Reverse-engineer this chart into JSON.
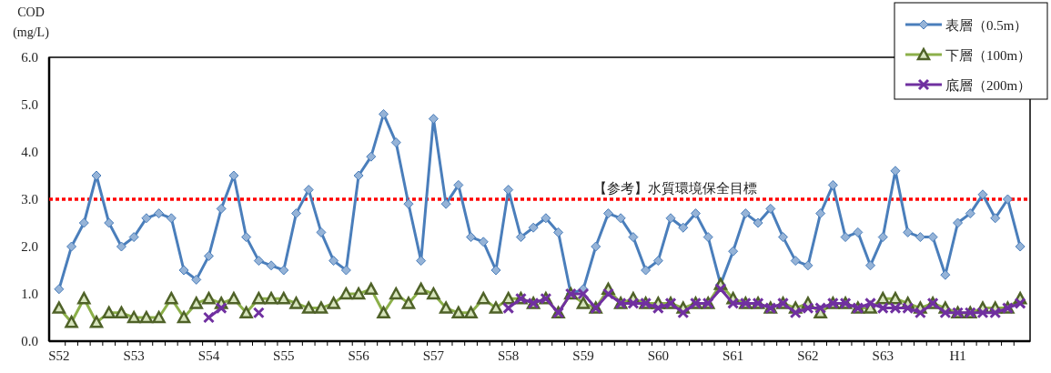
{
  "chart_data": {
    "type": "line",
    "ylabel": "COD\n(mg/L)",
    "categories": [
      "S52",
      null,
      null,
      null,
      null,
      null,
      "S53",
      null,
      null,
      null,
      null,
      null,
      "S54",
      null,
      null,
      null,
      null,
      null,
      "S55",
      null,
      null,
      null,
      null,
      null,
      "S56",
      null,
      null,
      null,
      null,
      null,
      "S57",
      null,
      null,
      null,
      null,
      null,
      "S58",
      null,
      null,
      null,
      null,
      null,
      "S59",
      null,
      null,
      null,
      null,
      null,
      "S60",
      null,
      null,
      null,
      null,
      null,
      "S61",
      null,
      null,
      null,
      null,
      null,
      "S62",
      null,
      null,
      null,
      null,
      null,
      "S63",
      null,
      null,
      null,
      null,
      null,
      "H1",
      null,
      null,
      null,
      null,
      null
    ],
    "ylim": [
      0,
      6
    ],
    "yticks": [
      {
        "value": 0,
        "label": "0.0"
      },
      {
        "value": 1,
        "label": "1.0"
      },
      {
        "value": 2,
        "label": "2.0"
      },
      {
        "value": 3,
        "label": "3.0"
      },
      {
        "value": 4,
        "label": "4.0"
      },
      {
        "value": 5,
        "label": "5.0"
      },
      {
        "value": 6,
        "label": "6.0"
      }
    ],
    "legend": "top right",
    "series": [
      {
        "name": "表層（0.5m）",
        "color": "#4a7ebb",
        "marker": "diamond",
        "values": [
          1.1,
          2.0,
          2.5,
          3.5,
          2.5,
          2.0,
          2.2,
          2.6,
          2.7,
          2.6,
          1.5,
          1.3,
          1.8,
          2.8,
          3.5,
          2.2,
          1.7,
          1.6,
          1.5,
          2.7,
          3.2,
          2.3,
          1.7,
          1.5,
          3.5,
          3.9,
          4.8,
          4.2,
          2.9,
          1.7,
          4.7,
          2.9,
          3.3,
          2.2,
          2.1,
          1.5,
          3.2,
          2.2,
          2.4,
          2.6,
          2.3,
          1.0,
          1.1,
          2.0,
          2.7,
          2.6,
          2.2,
          1.5,
          1.7,
          2.6,
          2.4,
          2.7,
          2.2,
          1.2,
          1.9,
          2.7,
          2.5,
          2.8,
          2.2,
          1.7,
          1.6,
          2.7,
          3.3,
          2.2,
          2.3,
          1.6,
          2.2,
          3.6,
          2.3,
          2.2,
          2.2,
          1.4,
          2.5,
          2.7,
          3.1,
          2.6,
          3.0,
          2.0
        ]
      },
      {
        "name": "下層（100m）",
        "color": "#8cb04a",
        "marker": "triangle",
        "values": [
          0.7,
          0.4,
          0.9,
          0.4,
          0.6,
          0.6,
          0.5,
          0.5,
          0.5,
          0.9,
          0.5,
          0.8,
          0.9,
          0.8,
          0.9,
          0.6,
          0.9,
          0.9,
          0.9,
          0.8,
          0.7,
          0.7,
          0.8,
          1.0,
          1.0,
          1.1,
          0.6,
          1.0,
          0.8,
          1.1,
          1.0,
          0.7,
          0.6,
          0.6,
          0.9,
          0.7,
          0.9,
          0.9,
          0.8,
          0.9,
          0.6,
          1.0,
          0.8,
          0.7,
          1.1,
          0.8,
          0.9,
          0.8,
          0.8,
          0.8,
          0.7,
          0.8,
          0.8,
          1.2,
          0.9,
          0.8,
          0.8,
          0.7,
          0.8,
          0.7,
          0.8,
          0.6,
          0.8,
          0.8,
          0.7,
          0.7,
          0.9,
          0.9,
          0.8,
          0.7,
          0.8,
          0.7,
          0.6,
          0.6,
          0.7,
          0.7,
          0.7,
          0.9
        ]
      },
      {
        "name": "底層（200m）",
        "color": "#7030a0",
        "marker": "cross",
        "values": [
          null,
          null,
          null,
          null,
          null,
          null,
          null,
          null,
          null,
          null,
          null,
          null,
          0.5,
          0.7,
          null,
          null,
          0.6,
          null,
          null,
          null,
          null,
          null,
          null,
          null,
          null,
          null,
          null,
          null,
          null,
          null,
          null,
          null,
          null,
          null,
          null,
          null,
          0.7,
          0.9,
          0.8,
          0.9,
          0.6,
          1.0,
          1.0,
          0.7,
          1.0,
          0.8,
          0.8,
          0.8,
          0.7,
          0.8,
          0.6,
          0.8,
          0.8,
          1.1,
          0.8,
          0.8,
          0.8,
          0.7,
          0.8,
          0.6,
          0.7,
          0.7,
          0.8,
          0.8,
          0.7,
          0.8,
          0.7,
          0.7,
          0.7,
          0.6,
          0.8,
          0.6,
          0.6,
          0.6,
          0.6,
          0.6,
          0.7,
          0.8
        ]
      }
    ],
    "ref_lines": [
      {
        "axis": "y",
        "value": 3.0,
        "label": "【参考】水質環境保全目標",
        "color": "#ff0000",
        "line_style": "dotted"
      }
    ]
  }
}
